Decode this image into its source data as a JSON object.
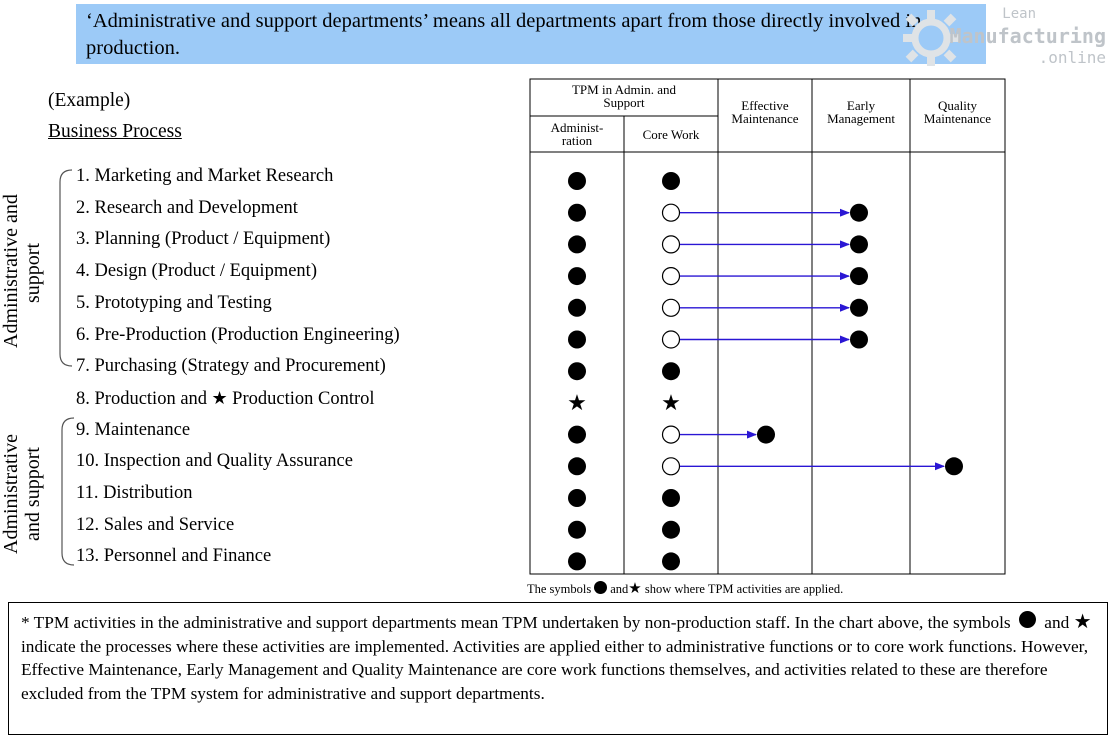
{
  "header": {
    "text": "‘Administrative and support departments’ means all departments apart from those directly involved in production."
  },
  "watermark": {
    "line1": "Lean",
    "line2": "Manufacturing",
    "line3": ".online",
    "gear_icon": "gear-icon",
    "color": "#bfc4c9"
  },
  "example_label": "(Example)",
  "business_process_label": "Business Process",
  "side_labels": {
    "upper": [
      "Administrative and",
      "support"
    ],
    "lower": [
      "Administrative",
      "and support"
    ]
  },
  "processes": [
    {
      "label": "1. Marketing and Market Research",
      "admin": "dot",
      "core": "dot",
      "target": null
    },
    {
      "label": "2. Research and Development",
      "admin": "dot",
      "core": "circle",
      "target": "early"
    },
    {
      "label": "3. Planning (Product / Equipment)",
      "admin": "dot",
      "core": "circle",
      "target": "early"
    },
    {
      "label": "4. Design (Product / Equipment)",
      "admin": "dot",
      "core": "circle",
      "target": "early"
    },
    {
      "label": "5. Prototyping and Testing",
      "admin": "dot",
      "core": "circle",
      "target": "early"
    },
    {
      "label": "6. Pre-Production (Production Engineering)",
      "admin": "dot",
      "core": "circle",
      "target": "early"
    },
    {
      "label": "7. Purchasing (Strategy and Procurement)",
      "admin": "dot",
      "core": "dot",
      "target": null
    },
    {
      "label_before": "8. Production and",
      "label_after": "Production Control",
      "admin": "star",
      "core": "star",
      "target": null
    },
    {
      "label": "9. Maintenance",
      "admin": "dot",
      "core": "circle",
      "target": "effective"
    },
    {
      "label": "10. Inspection and Quality Assurance",
      "admin": "dot",
      "core": "circle",
      "target": "quality"
    },
    {
      "label": "11. Distribution",
      "admin": "dot",
      "core": "dot",
      "target": null
    },
    {
      "label": "12. Sales and Service",
      "admin": "dot",
      "core": "dot",
      "target": null
    },
    {
      "label": "13. Personnel and Finance",
      "admin": "dot",
      "core": "dot",
      "target": null
    }
  ],
  "table_headers": {
    "tpm_group": [
      "TPM in Admin. and",
      "Support"
    ],
    "admin": [
      "Administ-",
      "ration"
    ],
    "core": "Core Work",
    "effective": [
      "Effective",
      "Maintenance"
    ],
    "early": [
      "Early",
      "Management"
    ],
    "quality": [
      "Quality",
      "Maintenance"
    ]
  },
  "caption": {
    "before": "The symbols",
    "middle": "and",
    "after": "show where TPM activities are applied."
  },
  "note": {
    "part1": "* TPM activities in the administrative and support departments mean TPM undertaken by non-production staff.  In the chart above, the symbols",
    "part2": "and",
    "part3": "indicate the processes where these activities are implemented.  Activities are applied either to administrative functions or to core work functions.  However, Effective Maintenance, Early Management and Quality Maintenance are core work functions themselves, and activities related to these are therefore excluded from the TPM system for administrative and support departments."
  },
  "colors": {
    "header_bg": "#9ccaf7",
    "arrow": "#2a16d4"
  }
}
